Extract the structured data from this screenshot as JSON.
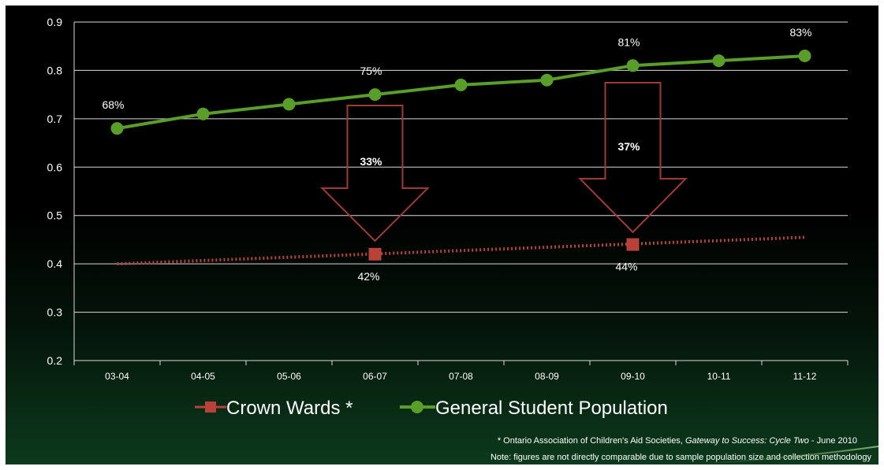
{
  "chart_data": {
    "type": "line",
    "categories": [
      "03-04",
      "04-05",
      "05-06",
      "06-07",
      "07-08",
      "08-09",
      "09-10",
      "10-11",
      "11-12"
    ],
    "ylim": [
      0.2,
      0.9
    ],
    "yticks": [
      "0.2",
      "0.3",
      "0.4",
      "0.5",
      "0.6",
      "0.7",
      "0.8",
      "0.9"
    ],
    "grid": true,
    "legend_placement": "bottom",
    "series": [
      {
        "name": "Crown Wards *",
        "style": "dotted-trend",
        "color": "#b8413a",
        "trend_start": 0.4,
        "trend_end": 0.455,
        "points": [
          {
            "x": "06-07",
            "y": 0.42,
            "label": "42%"
          },
          {
            "x": "09-10",
            "y": 0.44,
            "label": "44%"
          }
        ]
      },
      {
        "name": "General Student Population",
        "style": "solid",
        "color": "#5a9e2a",
        "values": [
          0.68,
          0.71,
          0.73,
          0.75,
          0.77,
          0.78,
          0.81,
          0.82,
          0.83
        ],
        "labels": {
          "03-04": "68%",
          "06-07": "75%",
          "09-10": "81%",
          "11-12": "83%"
        }
      }
    ],
    "annotations": [
      {
        "x": "06-07",
        "label": "33%",
        "type": "down-arrow"
      },
      {
        "x": "09-10",
        "label": "37%",
        "type": "down-arrow"
      }
    ],
    "footnote_line1_plain": "* Ontario Association of Children's Aid Societies, ",
    "footnote_line1_italic": "Gateway to Success: Cycle Two",
    "footnote_line1_tail": " - June 2010",
    "footnote_line2": "Note: figures are not directly comparable due to sample population size and collection methodology"
  }
}
